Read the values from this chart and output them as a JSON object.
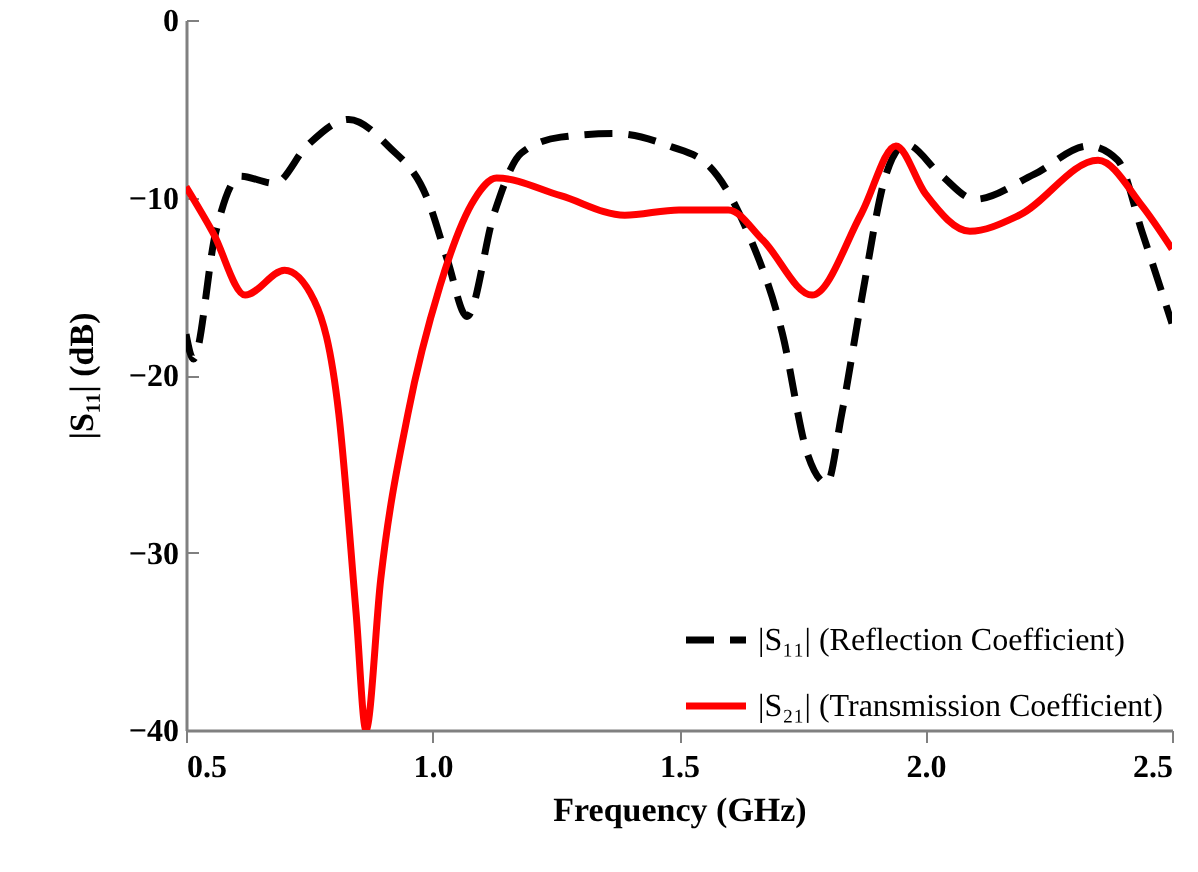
{
  "chart_data": {
    "type": "line",
    "xlabel": "Frequency (GHz)",
    "ylabel": "|S₁₁| (dB)",
    "xlim": [
      0.5,
      2.5
    ],
    "xticks": [
      0.5,
      {
        "value": 1,
        "label": "1.0"
      },
      1.5,
      {
        "value": 2,
        "label": "2.0"
      },
      2.5
    ],
    "ylim": [
      -40,
      0
    ],
    "yticks": [
      -40,
      -30,
      -20,
      -10,
      0
    ],
    "grid": false,
    "legend": "bottom right",
    "series": [
      {
        "name": "|S₁₁| (Reflection Coefficient)",
        "color": "#000000",
        "line_style": "dashed",
        "x": [
          0.5,
          0.515,
          0.56,
          0.61,
          0.68,
          0.745,
          0.83,
          0.91,
          0.99,
          1.03,
          1.07,
          1.125,
          1.18,
          1.26,
          1.37,
          1.48,
          1.56,
          1.64,
          1.71,
          1.76,
          1.8,
          1.83,
          1.87,
          1.92,
          1.96,
          2.03,
          2.1,
          2.22,
          2.33,
          2.39,
          2.44,
          2.5
        ],
        "values": [
          -17.7,
          -19.1,
          -12,
          -8.8,
          -9.2,
          -7.1,
          -5.6,
          -7.1,
          -10.1,
          -13.5,
          -16.7,
          -10.9,
          -7.5,
          -6.6,
          -6.4,
          -7.1,
          -8.2,
          -12,
          -17.7,
          -24.4,
          -26.1,
          -22.2,
          -15.8,
          -8.7,
          -7,
          -8.7,
          -10.1,
          -8.7,
          -7.1,
          -7.9,
          -12,
          -17.1
        ]
      },
      {
        "name": "|S₂₁| (Transmission Coefficient)",
        "color": "#ff0000",
        "line_style": "solid",
        "x": [
          0.5,
          0.555,
          0.62,
          0.7,
          0.76,
          0.81,
          0.845,
          0.865,
          0.895,
          0.95,
          1.015,
          1.085,
          1.13,
          1.26,
          1.39,
          1.5,
          1.6,
          1.67,
          1.77,
          1.87,
          1.94,
          2.0,
          2.09,
          2.19,
          2.35,
          2.44,
          2.5
        ],
        "values": [
          -9.4,
          -12,
          -15.5,
          -14.1,
          -15.8,
          -22.2,
          -33.4,
          -40,
          -31.5,
          -22.2,
          -15,
          -10.1,
          -8.9,
          -9.9,
          -11,
          -10.7,
          -10.7,
          -12.4,
          -15.5,
          -10.9,
          -7.1,
          -9.8,
          -11.9,
          -11,
          -7.9,
          -10.5,
          -12.9
        ]
      }
    ]
  }
}
